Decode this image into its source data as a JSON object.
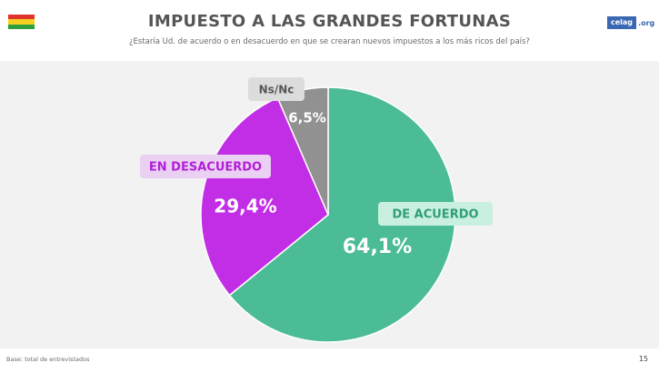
{
  "header": {
    "title": "IMPUESTO A LAS GRANDES FORTUNAS",
    "subtitle": "¿Estaría Ud. de acuerdo o en desacuerdo en que se crearan nuevos impuestos a los más ricos del país?",
    "logo_main": "celag",
    "logo_ext": ".org"
  },
  "flag": {
    "colors": [
      "#e0332b",
      "#f5d020",
      "#2f9e3f"
    ]
  },
  "chart_data": {
    "type": "pie",
    "categories": [
      "DE ACUERDO",
      "EN DESACUERDO",
      "Ns/Nc"
    ],
    "values": [
      64.1,
      29.4,
      6.5
    ],
    "value_labels": [
      "64,1%",
      "29,4%",
      "6,5%"
    ],
    "colors": [
      "#4bbc96",
      "#c22ee6",
      "#919191"
    ],
    "label_bg": [
      "#c9f0df",
      "#ead0f2",
      "#dcdcdc"
    ],
    "label_fg": [
      "#2f9e77",
      "#b31fd8",
      "#555555"
    ],
    "start_angle": "12 o'clock",
    "direction": "clockwise"
  },
  "footer": {
    "base": "Base: total de entrevistados",
    "page": "15"
  }
}
